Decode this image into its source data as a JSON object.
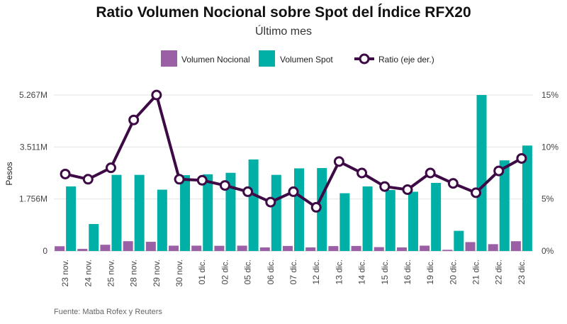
{
  "chart_data": {
    "type": "bar",
    "title": "Ratio Volumen Nocional sobre Spot del Índice RFX20",
    "subtitle": "Último mes",
    "source": "Fuente: Matba Rofex y Reuters",
    "ylabel": "Pesos",
    "categories": [
      "23 nov.",
      "24 nov.",
      "25 nov.",
      "28 nov.",
      "29 nov.",
      "30 nov.",
      "01 dic.",
      "02 dic.",
      "05 dic.",
      "06 dic.",
      "07 dic.",
      "12 dic.",
      "13 dic.",
      "14 dic.",
      "15 dic.",
      "16 dic.",
      "19 dic.",
      "20 dic.",
      "21 dic.",
      "22 dic.",
      "23 dic."
    ],
    "y_left": {
      "ticks": [
        "0",
        "1.756M",
        "3.511M",
        "5.267M"
      ],
      "tick_values": [
        0,
        1756000,
        3511000,
        5267000
      ],
      "lim": [
        0,
        5267000
      ]
    },
    "y_right": {
      "ticks": [
        "0%",
        "5%",
        "10%",
        "15%"
      ],
      "tick_values": [
        0,
        5,
        10,
        15
      ],
      "lim": [
        0,
        15
      ]
    },
    "series": [
      {
        "name": "Volumen Nocional",
        "type": "bar",
        "color": "#9b5fa6",
        "axis": "left",
        "values": [
          160000,
          70000,
          210000,
          330000,
          310000,
          180000,
          180000,
          175000,
          180000,
          120000,
          170000,
          120000,
          165000,
          170000,
          130000,
          120000,
          180000,
          40000,
          300000,
          230000,
          330000
        ]
      },
      {
        "name": "Volumen Spot",
        "type": "bar",
        "color": "#00b0a6",
        "axis": "left",
        "values": [
          2180000,
          910000,
          2570000,
          2570000,
          2070000,
          2560000,
          2590000,
          2640000,
          3090000,
          2570000,
          2790000,
          2800000,
          1950000,
          2180000,
          2060000,
          2000000,
          2300000,
          680000,
          5267000,
          3060000,
          3560000
        ]
      },
      {
        "name": "Ratio (eje der.)",
        "type": "line",
        "color": "#3d0a45",
        "axis": "right",
        "values": [
          7.4,
          6.9,
          8.0,
          12.6,
          15.0,
          6.9,
          6.8,
          6.3,
          5.7,
          4.7,
          5.7,
          4.2,
          8.6,
          7.5,
          6.2,
          5.9,
          7.5,
          6.5,
          5.6,
          7.7,
          8.9
        ]
      }
    ],
    "legend_position": "top",
    "grid": true
  }
}
